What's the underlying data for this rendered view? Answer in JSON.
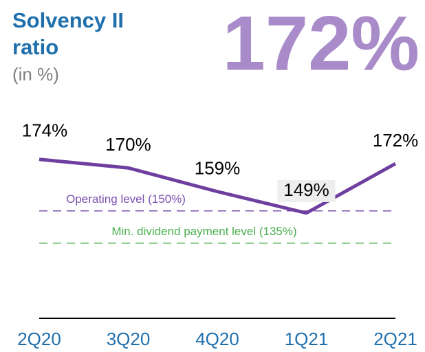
{
  "chart_data": {
    "type": "line",
    "title": "Solvency II ratio",
    "subtitle": "(in %)",
    "headline": "172%",
    "categories": [
      "2Q20",
      "3Q20",
      "4Q20",
      "1Q21",
      "2Q21"
    ],
    "values": [
      174,
      170,
      159,
      149,
      172
    ],
    "value_labels": [
      "174%",
      "170%",
      "159%",
      "149%",
      "172%"
    ],
    "color": "#6f3fa0",
    "ylim": [
      100,
      180
    ],
    "reference_lines": [
      {
        "label": "Operating level (150%)",
        "value": 150,
        "color": "#7b4fb0"
      },
      {
        "label": "Min. dividend payment level (135%)",
        "value": 135,
        "color": "#4caf50"
      }
    ]
  }
}
